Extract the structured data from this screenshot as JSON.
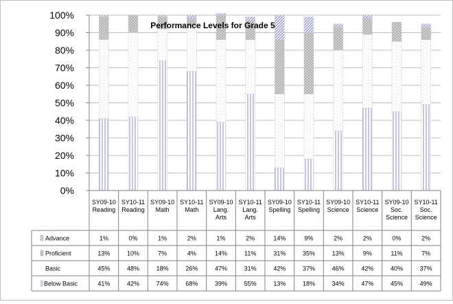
{
  "chart_data": {
    "type": "bar",
    "stacked": true,
    "percent_stacked": true,
    "title": "Performance Levels for Grade 5",
    "xlabel": "",
    "ylabel": "",
    "ylim": [
      0,
      100
    ],
    "y_ticks": [
      "0%",
      "10%",
      "20%",
      "30%",
      "40%",
      "50%",
      "60%",
      "70%",
      "80%",
      "90%",
      "100%"
    ],
    "grid": true,
    "legend": "data-table",
    "categories": [
      [
        "SY09-10",
        "Reading"
      ],
      [
        "SY10-11",
        "Reading"
      ],
      [
        "SY09-10",
        "Math"
      ],
      [
        "SY10-11",
        "Math"
      ],
      [
        "SY09-10",
        "Lang.",
        "Arts"
      ],
      [
        "SY10-11",
        "Lang.",
        "Arts"
      ],
      [
        "SY09-10",
        "Spelling"
      ],
      [
        "SY10-11",
        "Spelling"
      ],
      [
        "SY09-10",
        "Science"
      ],
      [
        "SY10-11",
        "Science"
      ],
      [
        "SY09-10",
        "Soc.",
        "Science"
      ],
      [
        "SY10-11",
        "Soc.",
        "Science"
      ]
    ],
    "series": [
      {
        "name": "Below Basic",
        "values": [
          41,
          42,
          74,
          68,
          39,
          55,
          13,
          18,
          34,
          47,
          45,
          49
        ],
        "labels": [
          "41%",
          "42%",
          "74%",
          "68%",
          "39%",
          "55%",
          "13%",
          "18%",
          "34%",
          "47%",
          "45%",
          "49%"
        ]
      },
      {
        "name": "Basic",
        "values": [
          45,
          48,
          18,
          26,
          47,
          31,
          42,
          37,
          46,
          42,
          40,
          37
        ],
        "labels": [
          "45%",
          "48%",
          "18%",
          "26%",
          "47%",
          "31%",
          "42%",
          "37%",
          "46%",
          "42%",
          "40%",
          "37%"
        ]
      },
      {
        "name": "Proficient",
        "values": [
          13,
          10,
          7,
          4,
          14,
          11,
          31,
          35,
          13,
          9,
          11,
          7
        ],
        "labels": [
          "13%",
          "10%",
          "7%",
          "4%",
          "14%",
          "11%",
          "31%",
          "35%",
          "13%",
          "9%",
          "11%",
          "7%"
        ]
      },
      {
        "name": "Advance",
        "values": [
          1,
          0,
          1,
          2,
          1,
          2,
          14,
          9,
          2,
          2,
          0,
          2
        ],
        "labels": [
          "1%",
          "0%",
          "1%",
          "2%",
          "1%",
          "2%",
          "14%",
          "9%",
          "2%",
          "2%",
          "0%",
          "2%"
        ]
      }
    ],
    "table_row_order": [
      "Advance",
      "Proficient",
      "Basic",
      "Below Basic"
    ]
  }
}
